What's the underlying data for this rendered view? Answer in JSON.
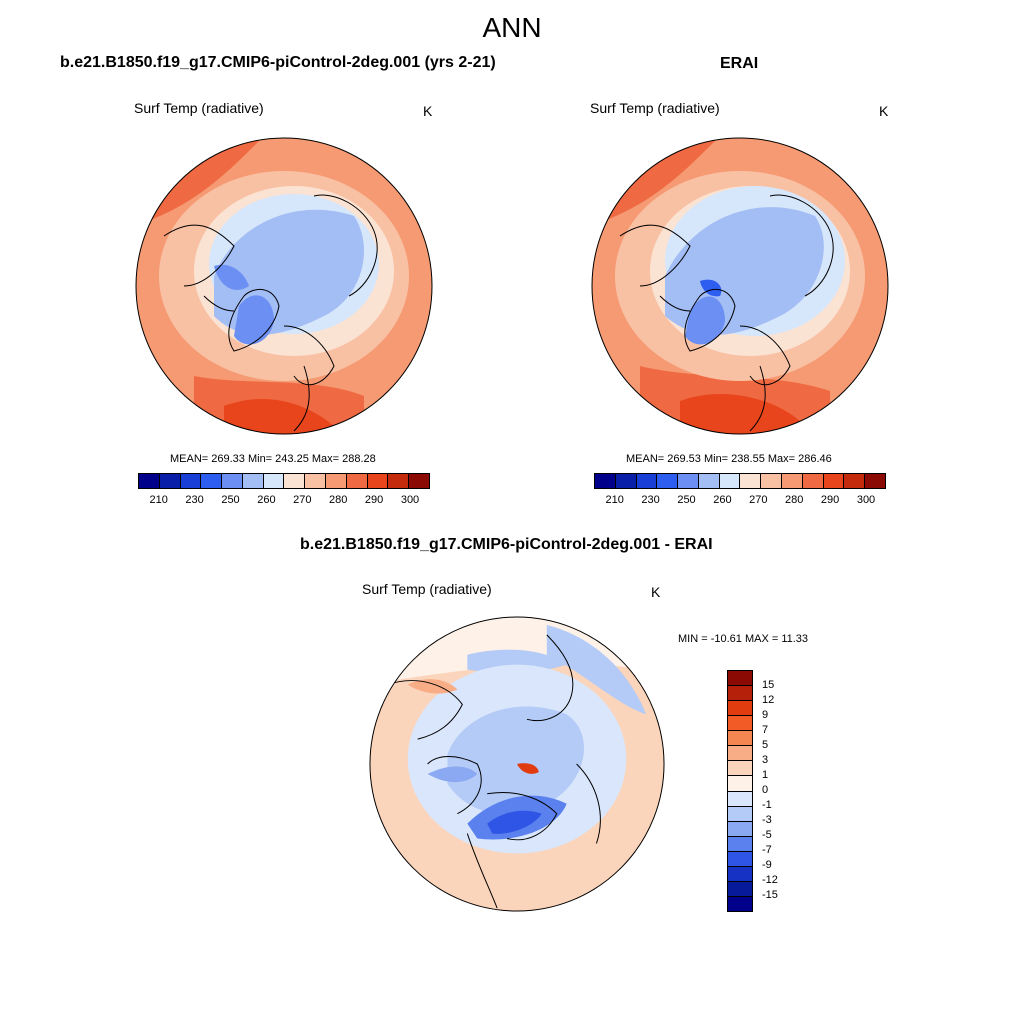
{
  "figure": {
    "season": "ANN"
  },
  "panels": [
    {
      "title": "b.e21.B1850.f19_g17.CMIP6-piControl-2deg.001 (yrs 2-21)",
      "variable": "Surf Temp (radiative)",
      "units": "K",
      "stats": "MEAN= 269.33  Min= 243.25  Max= 288.28",
      "colorbar_ticks": [
        "210",
        "230",
        "250",
        "260",
        "270",
        "280",
        "290",
        "300"
      ]
    },
    {
      "title": "ERAI",
      "variable": "Surf Temp (radiative)",
      "units": "K",
      "stats": "MEAN= 269.53  Min= 238.55  Max= 286.46",
      "colorbar_ticks": [
        "210",
        "230",
        "250",
        "260",
        "270",
        "280",
        "290",
        "300"
      ]
    }
  ],
  "diff_panel": {
    "title": "b.e21.B1850.f19_g17.CMIP6-piControl-2deg.001 - ERAI",
    "variable": "Surf Temp (radiative)",
    "units": "K",
    "stats": "MIN = -10.61 MAX =  11.33",
    "colorbar_ticks": [
      "15",
      "12",
      "9",
      "7",
      "5",
      "3",
      "1",
      "0",
      "-1",
      "-3",
      "-5",
      "-7",
      "-9",
      "-12",
      "-15"
    ]
  },
  "colors": {
    "temperature_scale": [
      "#00008b",
      "#0a1fa8",
      "#1a3fd6",
      "#2e5ef0",
      "#6b8ff2",
      "#a3bdf5",
      "#d6e6fb",
      "#fbe3d4",
      "#f9c1a3",
      "#f59a72",
      "#ef6a43",
      "#e8451c",
      "#c42b0c",
      "#8b0a04"
    ],
    "difference_scale": [
      "#8b0a04",
      "#b5200a",
      "#e03c10",
      "#f25b26",
      "#f68651",
      "#f8ad86",
      "#fbd5bb",
      "#fdf1e8",
      "#d9e6fb",
      "#b3cbf6",
      "#8aa9f2",
      "#5a81ee",
      "#2f55e6",
      "#1532c4",
      "#061a9a",
      "#00008b"
    ]
  }
}
